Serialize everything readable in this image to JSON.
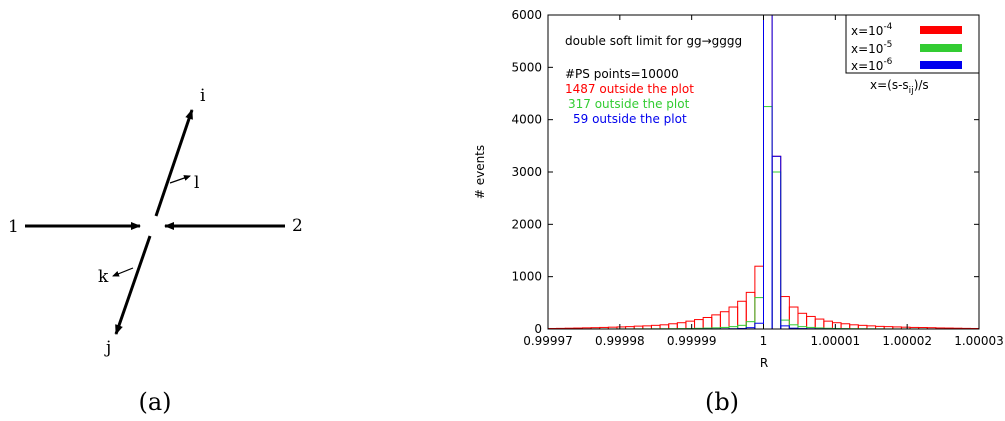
{
  "panel_a": {
    "caption": "(a)",
    "labels": {
      "i": "i",
      "l": "l",
      "one": "1",
      "two": "2",
      "k": "k",
      "j": "j"
    }
  },
  "panel_b": {
    "caption": "(b)",
    "annotations": {
      "title": "double soft limit for gg→gggg",
      "ps_points": "#PS points=10000",
      "outside_red": "1487 outside the plot",
      "outside_green": "317 outside the plot",
      "outside_blue": "59 outside the plot"
    },
    "legend_note": "x=(s-s",
    "legend_note_sub": "ij",
    "legend_note_end": ")/s"
  },
  "colors": {
    "red": "#ff0000",
    "green": "#33cc33",
    "blue": "#0000ee"
  },
  "chart_data": {
    "type": "bar",
    "xlabel": "R",
    "ylabel": "# events",
    "xlim": [
      0.99997,
      1.00003
    ],
    "ylim": [
      0,
      6000
    ],
    "xticks": [
      "0.99997",
      "0.99998",
      "0.99999",
      "1",
      "1.00001",
      "1.00002",
      "1.00003"
    ],
    "yticks": [
      "0",
      "1000",
      "2000",
      "3000",
      "4000",
      "5000",
      "6000"
    ],
    "grid": false,
    "legend_position": "top-right",
    "bin_width": 1.2e-06,
    "bin_centers": [
      0.9999706,
      0.9999718,
      0.999973,
      0.9999742,
      0.9999754,
      0.9999766,
      0.9999778,
      0.999979,
      0.9999802,
      0.9999814,
      0.9999826,
      0.9999838,
      0.999985,
      0.9999862,
      0.9999874,
      0.9999886,
      0.9999898,
      0.999991,
      0.9999922,
      0.9999934,
      0.9999946,
      0.9999958,
      0.999997,
      0.9999982,
      0.9999994,
      1.0000006,
      1.0000018,
      1.000003,
      1.0000042,
      1.0000054,
      1.0000066,
      1.0000078,
      1.000009,
      1.0000102,
      1.0000114,
      1.0000126,
      1.0000138,
      1.000015,
      1.0000162,
      1.0000174,
      1.0000186,
      1.0000198,
      1.000021,
      1.0000222,
      1.0000234,
      1.0000246,
      1.0000258,
      1.000027,
      1.0000282,
      1.0000294
    ],
    "series": [
      {
        "name_base": "x=10",
        "name_exp": "-4",
        "color": "#ff0000",
        "values": [
          10,
          12,
          15,
          18,
          22,
          25,
          30,
          35,
          40,
          45,
          55,
          60,
          70,
          80,
          100,
          120,
          150,
          180,
          220,
          270,
          330,
          420,
          530,
          700,
          1200,
          6000,
          3300,
          620,
          420,
          300,
          240,
          190,
          150,
          120,
          100,
          80,
          70,
          60,
          50,
          45,
          40,
          35,
          30,
          28,
          25,
          20,
          18,
          15,
          12,
          10
        ]
      },
      {
        "name_base": "x=10",
        "name_exp": "-5",
        "color": "#33cc33",
        "values": [
          0,
          0,
          0,
          0,
          0,
          1,
          1,
          1,
          2,
          2,
          3,
          3,
          4,
          5,
          6,
          8,
          10,
          13,
          17,
          22,
          30,
          45,
          70,
          140,
          600,
          4250,
          3000,
          170,
          80,
          45,
          30,
          20,
          14,
          10,
          8,
          6,
          5,
          4,
          3,
          2,
          2,
          1,
          1,
          1,
          0,
          0,
          0,
          0,
          0,
          0
        ]
      },
      {
        "name_base": "x=10",
        "name_exp": "-6",
        "color": "#0000ee",
        "values": [
          0,
          0,
          0,
          0,
          0,
          0,
          0,
          0,
          0,
          0,
          0,
          0,
          0,
          0,
          0,
          0,
          1,
          1,
          2,
          2,
          3,
          5,
          10,
          25,
          110,
          6000,
          3300,
          60,
          15,
          8,
          5,
          3,
          2,
          1,
          1,
          0,
          0,
          0,
          0,
          0,
          0,
          0,
          0,
          0,
          0,
          0,
          0,
          0,
          0,
          0
        ]
      }
    ]
  }
}
